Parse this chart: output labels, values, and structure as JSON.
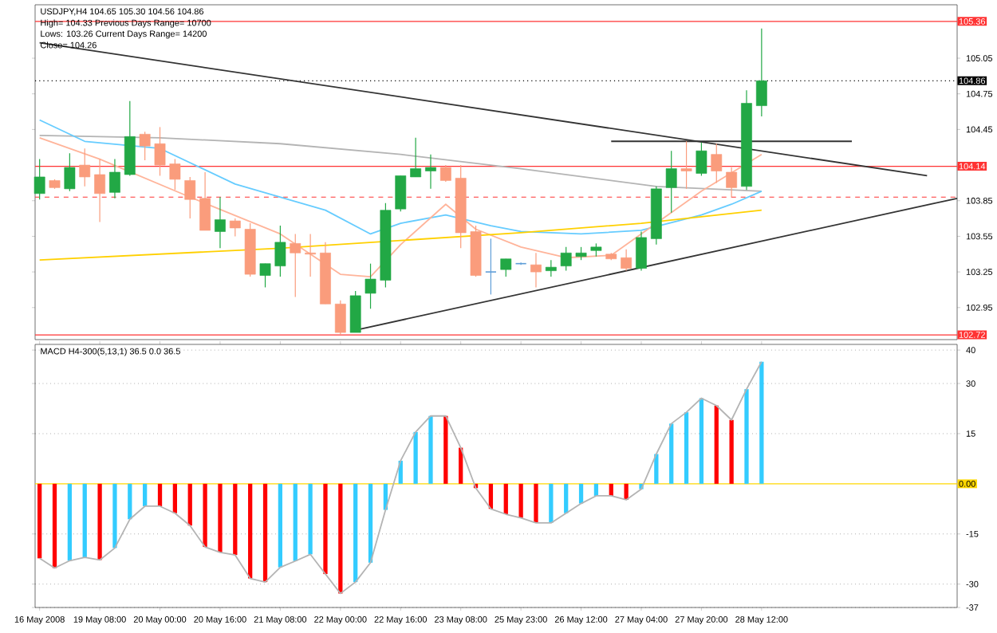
{
  "chart_data": [
    {
      "type": "candlestick",
      "title": "USDJPY,H4 104.65 105.30 104.56 104.86",
      "annotations": [
        "High= 104.33 Previous Days Range= 10700",
        "Lows: 103.26 Current Days Range= 14200",
        "Close= 104.26"
      ],
      "categories": [
        null,
        null,
        null,
        null,
        null,
        null,
        null,
        null,
        null,
        null,
        null,
        null,
        null,
        null,
        null,
        null,
        null,
        null,
        null,
        null,
        null,
        null,
        null,
        null,
        null,
        null,
        null,
        null,
        null,
        null,
        null,
        null,
        null,
        null,
        null,
        null,
        null,
        null,
        null,
        null,
        null,
        null,
        null,
        null,
        null,
        null,
        null,
        null,
        null,
        null,
        null,
        null,
        null,
        null,
        null,
        null,
        null,
        null,
        null,
        null,
        null,
        null
      ],
      "ohlc": [
        [
          103.91,
          104.2,
          103.86,
          104.05
        ],
        [
          104.02,
          104.03,
          103.95,
          103.96
        ],
        [
          103.95,
          104.25,
          103.93,
          104.13
        ],
        [
          104.15,
          104.29,
          103.97,
          104.05
        ],
        [
          104.07,
          104.2,
          103.67,
          103.91
        ],
        [
          103.92,
          104.2,
          103.87,
          104.09
        ],
        [
          104.07,
          104.69,
          104.06,
          104.39
        ],
        [
          104.41,
          104.43,
          104.19,
          104.31
        ],
        [
          104.33,
          104.47,
          104.06,
          104.15
        ],
        [
          104.16,
          104.2,
          103.94,
          104.03
        ],
        [
          104.02,
          104.05,
          103.7,
          103.86
        ],
        [
          103.87,
          104.09,
          103.6,
          103.6
        ],
        [
          103.59,
          103.88,
          103.45,
          103.69
        ],
        [
          103.68,
          103.7,
          103.55,
          103.62
        ],
        [
          103.61,
          103.66,
          103.21,
          103.23
        ],
        [
          103.22,
          103.32,
          103.12,
          103.32
        ],
        [
          103.3,
          103.64,
          103.21,
          103.5
        ],
        [
          103.49,
          103.57,
          103.04,
          103.41
        ],
        [
          103.41,
          103.57,
          103.21,
          103.4
        ],
        [
          103.41,
          103.5,
          102.98,
          102.98
        ],
        [
          102.98,
          103.01,
          102.72,
          102.74
        ],
        [
          102.74,
          103.09,
          102.74,
          103.05
        ],
        [
          103.07,
          103.32,
          102.94,
          103.19
        ],
        [
          103.18,
          103.83,
          103.12,
          103.77
        ],
        [
          103.78,
          104.06,
          103.76,
          104.06
        ],
        [
          104.05,
          104.38,
          104.05,
          104.12
        ],
        [
          104.1,
          104.24,
          103.95,
          104.13
        ],
        [
          104.13,
          104.15,
          104.01,
          104.02
        ],
        [
          104.04,
          104.15,
          103.45,
          103.58
        ],
        [
          103.59,
          103.64,
          103.21,
          103.22
        ],
        [
          103.25,
          103.53,
          103.06,
          103.25
        ],
        [
          103.27,
          103.36,
          103.21,
          103.36
        ],
        [
          103.32,
          103.33,
          103.31,
          103.32
        ],
        [
          103.31,
          103.41,
          103.12,
          103.25
        ],
        [
          103.26,
          103.35,
          103.21,
          103.29
        ],
        [
          103.3,
          103.46,
          103.26,
          103.41
        ],
        [
          103.38,
          103.46,
          103.35,
          103.41
        ],
        [
          103.43,
          103.49,
          103.38,
          103.46
        ],
        [
          103.4,
          103.41,
          103.35,
          103.36
        ],
        [
          103.37,
          103.44,
          103.26,
          103.28
        ],
        [
          103.28,
          103.59,
          103.26,
          103.54
        ],
        [
          103.53,
          103.97,
          103.48,
          103.95
        ],
        [
          103.96,
          104.27,
          103.75,
          104.12
        ],
        [
          104.12,
          104.35,
          103.95,
          104.1
        ],
        [
          104.08,
          104.34,
          104.06,
          104.27
        ],
        [
          104.24,
          104.33,
          104.0,
          104.1
        ],
        [
          104.09,
          104.13,
          103.88,
          103.96
        ],
        [
          103.97,
          104.78,
          103.94,
          104.67
        ],
        [
          104.65,
          105.3,
          104.56,
          104.86
        ],
        null,
        null,
        null,
        null,
        null,
        null,
        null,
        null,
        null,
        null,
        null,
        null,
        null
      ],
      "colors": [
        "#22a845",
        "#fa9c7c",
        "#22a845",
        "#fa9c7c",
        "#fa9c7c",
        "#22a845",
        "#22a845",
        "#fa9c7c",
        "#fa9c7c",
        "#fa9c7c",
        "#fa9c7c",
        "#fa9c7c",
        "#22a845",
        "#fa9c7c",
        "#fa9c7c",
        "#22a845",
        "#22a845",
        "#fa9c7c",
        "#fa9c7c",
        "#fa9c7c",
        "#fa9c7c",
        "#22a845",
        "#22a845",
        "#22a845",
        "#22a845",
        "#22a845",
        "#22a845",
        "#fa9c7c",
        "#fa9c7c",
        "#fa9c7c",
        "#5f9ed8",
        "#22a845",
        "#5f9ed8",
        "#fa9c7c",
        "#22a845",
        "#22a845",
        "#22a845",
        "#22a845",
        "#fa9c7c",
        "#fa9c7c",
        "#22a845",
        "#22a845",
        "#22a845",
        "#fa9c7c",
        "#22a845",
        "#fa9c7c",
        "#fa9c7c",
        "#22a845",
        "#22a845",
        null,
        null,
        null,
        null,
        null,
        null,
        null,
        null,
        null,
        null,
        null,
        null,
        null
      ],
      "series": [
        {
          "type": "line",
          "color": "#b4b4b4",
          "values": [
            104.4,
            null,
            null,
            null,
            null,
            null,
            null,
            null,
            104.38,
            null,
            null,
            null,
            null,
            null,
            null,
            null,
            104.33,
            null,
            null,
            null,
            null,
            null,
            null,
            null,
            104.24,
            null,
            null,
            null,
            null,
            null,
            null,
            null,
            104.12,
            null,
            null,
            null,
            null,
            null,
            null,
            null,
            null,
            103.97,
            null,
            null,
            null,
            null,
            null,
            null,
            103.93,
            null,
            null,
            null,
            null,
            null,
            null,
            null,
            null,
            null,
            null,
            null,
            null,
            null
          ]
        },
        {
          "type": "line",
          "color": "#66ccff",
          "values": [
            104.53,
            null,
            null,
            104.35,
            null,
            null,
            null,
            null,
            104.29,
            null,
            null,
            null,
            null,
            103.99,
            null,
            null,
            null,
            null,
            null,
            103.77,
            null,
            null,
            103.57,
            null,
            103.66,
            null,
            null,
            103.73,
            null,
            null,
            103.64,
            null,
            103.59,
            null,
            null,
            null,
            103.57,
            null,
            null,
            null,
            103.6,
            null,
            null,
            null,
            103.73,
            null,
            103.82,
            null,
            103.93,
            null,
            null,
            null,
            null,
            null,
            null,
            null,
            null,
            null,
            null,
            null,
            null,
            null
          ]
        },
        {
          "type": "line",
          "color": "#ffb49a",
          "values": [
            104.38,
            null,
            null,
            null,
            104.2,
            null,
            null,
            null,
            null,
            null,
            103.88,
            null,
            null,
            null,
            null,
            null,
            103.57,
            null,
            null,
            null,
            103.23,
            null,
            103.21,
            null,
            103.48,
            null,
            null,
            103.82,
            null,
            103.61,
            null,
            null,
            103.46,
            null,
            null,
            103.37,
            null,
            null,
            103.39,
            null,
            null,
            103.66,
            null,
            null,
            103.93,
            null,
            null,
            null,
            104.24,
            null,
            null,
            null,
            null,
            null,
            null,
            null,
            null,
            null,
            null,
            null,
            null,
            null
          ]
        },
        {
          "type": "line",
          "color": "#ffd000",
          "values": [
            103.35,
            null,
            null,
            null,
            null,
            null,
            null,
            null,
            null,
            null,
            null,
            null,
            null,
            null,
            null,
            null,
            103.45,
            null,
            null,
            null,
            null,
            null,
            null,
            null,
            null,
            null,
            null,
            null,
            null,
            null,
            null,
            null,
            103.58,
            null,
            null,
            null,
            null,
            null,
            null,
            null,
            103.66,
            null,
            null,
            null,
            null,
            null,
            null,
            null,
            103.77,
            null,
            null,
            null,
            null,
            null,
            null,
            null,
            null,
            null,
            null,
            null,
            null,
            null
          ]
        },
        {
          "type": "line",
          "color": "#333333",
          "values": [
            105.18,
            null,
            null,
            null,
            null,
            null,
            null,
            null,
            null,
            null,
            null,
            null,
            null,
            null,
            null,
            null,
            null,
            null,
            null,
            null,
            null,
            null,
            null,
            null,
            null,
            null,
            null,
            null,
            null,
            null,
            null,
            null,
            null,
            null,
            null,
            null,
            null,
            null,
            null,
            null,
            null,
            null,
            null,
            null,
            null,
            null,
            null,
            null,
            null,
            null,
            null,
            null,
            null,
            null,
            null,
            null,
            null,
            null,
            null,
            104.06,
            null,
            null
          ]
        },
        {
          "type": "line",
          "color": "#333333",
          "values": [
            null,
            null,
            null,
            null,
            null,
            null,
            null,
            null,
            null,
            null,
            null,
            null,
            null,
            null,
            null,
            null,
            null,
            null,
            null,
            null,
            null,
            102.76,
            null,
            null,
            null,
            null,
            null,
            null,
            null,
            null,
            null,
            null,
            null,
            null,
            null,
            null,
            null,
            null,
            null,
            null,
            null,
            null,
            null,
            null,
            null,
            null,
            null,
            null,
            null,
            null,
            null,
            null,
            null,
            null,
            null,
            null,
            null,
            null,
            null,
            null,
            null,
            103.87
          ]
        },
        {
          "type": "line",
          "color": "#333333",
          "values": [
            null,
            null,
            null,
            null,
            null,
            null,
            null,
            null,
            null,
            null,
            null,
            null,
            null,
            null,
            null,
            null,
            null,
            null,
            null,
            null,
            null,
            null,
            null,
            null,
            null,
            null,
            null,
            null,
            null,
            null,
            null,
            null,
            null,
            null,
            null,
            null,
            null,
            null,
            104.35,
            null,
            null,
            null,
            null,
            null,
            null,
            null,
            null,
            null,
            null,
            null,
            null,
            null,
            null,
            null,
            104.35,
            null,
            null,
            null,
            null,
            null,
            null,
            null
          ]
        }
      ],
      "ylim": [
        102.68,
        105.5
      ],
      "yticks": [
        102.95,
        103.25,
        103.55,
        103.85,
        104.45,
        104.75,
        105.05
      ],
      "ref_lines": [
        {
          "axis": "y",
          "value": 105.36,
          "label": "105.36",
          "color": "#ff3333"
        },
        {
          "axis": "y",
          "value": 104.86,
          "label": "104.86",
          "color": "#000000",
          "line_style": "dotted"
        },
        {
          "axis": "y",
          "value": 104.14,
          "label": "104.14",
          "color": "#ff3333"
        },
        {
          "axis": "y",
          "value": 103.88,
          "color": "#ff3333",
          "line_style": "dashed"
        },
        {
          "axis": "y",
          "value": 102.72,
          "label": "102.72",
          "color": "#ff3333"
        }
      ],
      "tick_labels": "y"
    },
    {
      "type": "bar",
      "title": "MACD H4-300(5,13,1) 36.5 0.0 36.5",
      "categories": [
        "16 May 2008",
        null,
        null,
        null,
        "19 May 08:00",
        null,
        null,
        null,
        "20 May 00:00",
        null,
        null,
        null,
        "20 May 16:00",
        null,
        null,
        null,
        "21 May 08:00",
        null,
        null,
        null,
        "22 May 00:00",
        null,
        null,
        null,
        "22 May 16:00",
        null,
        null,
        null,
        "23 May 08:00",
        null,
        null,
        null,
        "25 May 23:00",
        null,
        null,
        null,
        "26 May 12:00",
        null,
        null,
        null,
        "27 May 04:00",
        null,
        null,
        null,
        "27 May 20:00",
        null,
        null,
        null,
        "28 May 12:00",
        null,
        null,
        null,
        null,
        null,
        null,
        null,
        null,
        null,
        null,
        null,
        null,
        null
      ],
      "series": [
        {
          "type": "bar",
          "values": [
            -22.3,
            -25.2,
            -23.0,
            -22.0,
            -22.8,
            -19.2,
            -10.6,
            -6.7,
            -6.7,
            -8.8,
            -12.5,
            -18.9,
            -20.5,
            -21.3,
            -28.3,
            -29.4,
            -25.0,
            -23.1,
            -21.1,
            -27.0,
            -32.8,
            -29.4,
            -23.6,
            -7.8,
            6.9,
            15.5,
            20.3,
            20.3,
            10.8,
            -1.3,
            -7.5,
            -9.1,
            -10.2,
            -11.7,
            -11.7,
            -8.8,
            -5.9,
            -3.6,
            -3.6,
            -4.8,
            -1.6,
            8.9,
            18.0,
            21.4,
            25.6,
            23.4,
            19.1,
            28.3,
            36.5,
            null,
            null,
            null,
            null,
            null,
            null,
            null,
            null,
            null,
            null,
            null,
            null,
            null
          ],
          "colors": [
            "#ff0000",
            "#ff0000",
            "#33ccff",
            "#33ccff",
            "#ff0000",
            "#33ccff",
            "#33ccff",
            "#33ccff",
            "#ff0000",
            "#ff0000",
            "#ff0000",
            "#ff0000",
            "#ff0000",
            "#ff0000",
            "#ff0000",
            "#ff0000",
            "#33ccff",
            "#33ccff",
            "#33ccff",
            "#ff0000",
            "#ff0000",
            "#33ccff",
            "#33ccff",
            "#33ccff",
            "#33ccff",
            "#33ccff",
            "#33ccff",
            "#ff0000",
            "#ff0000",
            "#ff0000",
            "#ff0000",
            "#ff0000",
            "#ff0000",
            "#ff0000",
            "#33ccff",
            "#33ccff",
            "#33ccff",
            "#33ccff",
            "#ff0000",
            "#ff0000",
            "#33ccff",
            "#33ccff",
            "#33ccff",
            "#33ccff",
            "#33ccff",
            "#ff0000",
            "#ff0000",
            "#33ccff",
            "#33ccff",
            null,
            null,
            null,
            null,
            null,
            null,
            null,
            null,
            null,
            null,
            null,
            null,
            null
          ]
        },
        {
          "type": "line",
          "color": "#b4b4b4",
          "values": [
            -22.3,
            -25.2,
            -23.0,
            -22.0,
            -22.8,
            -19.2,
            -10.6,
            -6.7,
            -6.7,
            -8.8,
            -12.5,
            -18.9,
            -20.5,
            -21.3,
            -28.3,
            -29.4,
            -25.0,
            -23.1,
            -21.1,
            -27.0,
            -32.8,
            -29.4,
            -23.6,
            -7.8,
            6.9,
            15.5,
            20.3,
            20.3,
            10.8,
            -1.3,
            -7.5,
            -9.1,
            -10.2,
            -11.7,
            -11.7,
            -8.8,
            -5.9,
            -3.6,
            -3.6,
            -4.8,
            -1.6,
            8.9,
            18.0,
            21.4,
            25.6,
            23.4,
            19.1,
            28.3,
            36.5,
            null,
            null,
            null,
            null,
            null,
            null,
            null,
            null,
            null,
            null,
            null,
            null,
            null
          ]
        }
      ],
      "ylim": [
        -37,
        41.7
      ],
      "yticks": [
        40,
        30,
        15,
        -15,
        -30,
        -37
      ],
      "ref_lines": [
        {
          "axis": "y",
          "value": 0,
          "label": "0.00",
          "color": "#ffd700"
        }
      ],
      "grid": "y"
    }
  ]
}
